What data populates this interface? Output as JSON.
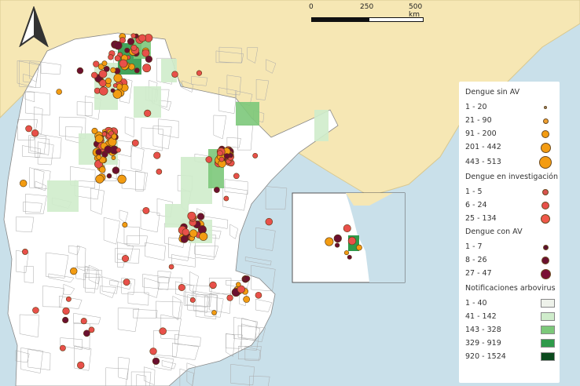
{
  "scale_bar": {
    "labels": [
      "0",
      "250",
      "500 km"
    ]
  },
  "north_arrow": {
    "icon": "north-arrow-icon"
  },
  "colors": {
    "sea": "#c9e0ea",
    "neighbor_land": "#f6e7b4",
    "country": "#ffffff",
    "sin_av": "#f39c12",
    "investigacion": "#e8504a",
    "con_av": "#6b1030"
  },
  "legend": {
    "sin_av": {
      "title": "Dengue sin AV",
      "items": [
        {
          "label": "1 - 20",
          "color": "#9a8a70"
        },
        {
          "label": "21 - 90",
          "color": "#f0a030"
        },
        {
          "label": "91 - 200",
          "color": "#f39c12"
        },
        {
          "label": "201 - 442",
          "color": "#f39c12"
        },
        {
          "label": "443 - 513",
          "color": "#f39c12"
        }
      ]
    },
    "investigacion": {
      "title": "Dengue en investigación",
      "items": [
        {
          "label": "1 - 5",
          "color": "#d9534f"
        },
        {
          "label": "6 - 24",
          "color": "#e8504a"
        },
        {
          "label": "25 - 134",
          "color": "#f0584a"
        }
      ]
    },
    "con_av": {
      "title": "Dengue con AV",
      "items": [
        {
          "label": "1 - 7",
          "color": "#5a1030"
        },
        {
          "label": "8 - 26",
          "color": "#6b1030"
        },
        {
          "label": "27 - 47",
          "color": "#7a1035"
        }
      ]
    },
    "arbovirus": {
      "title": "Notificaciones arbovirus",
      "items": [
        {
          "label": "1 - 40",
          "color": "#eef2ea"
        },
        {
          "label": "41 - 142",
          "color": "#cfeccb"
        },
        {
          "label": "143 - 328",
          "color": "#7cc87a"
        },
        {
          "label": "329 - 919",
          "color": "#2e9a4a"
        },
        {
          "label": "920 - 1524",
          "color": "#0b4a1e"
        }
      ]
    }
  }
}
